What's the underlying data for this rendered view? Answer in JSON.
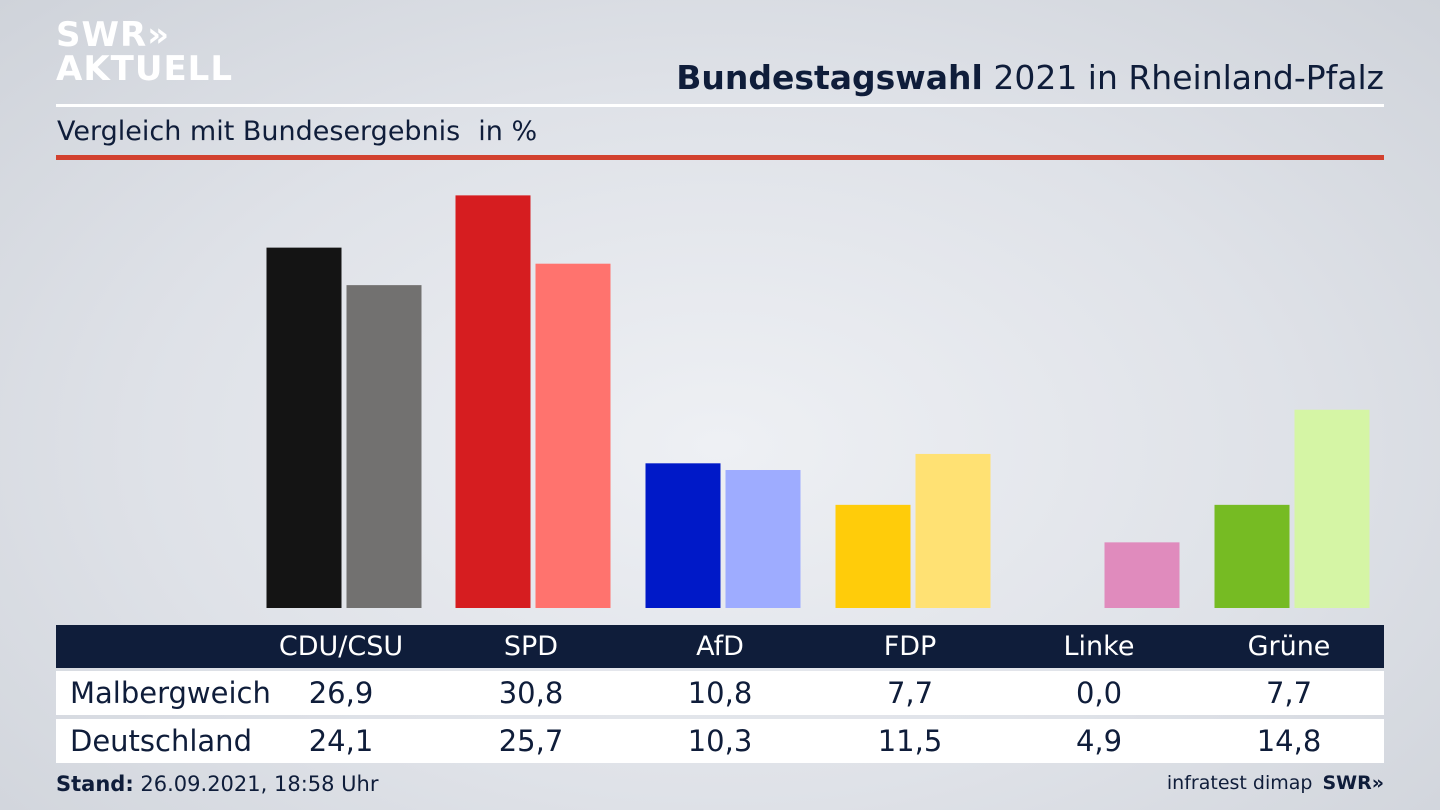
{
  "logo": {
    "line1": "SWR»",
    "line2": "AKTUELL"
  },
  "headline": {
    "bold": "Bundestagswahl",
    "rest": " 2021 in Rheinland-Pfalz"
  },
  "subtitle": {
    "text": "Vergleich mit Bundesergebnis",
    "unit": "in %"
  },
  "chart_data": {
    "type": "bar",
    "categories": [
      "CDU/CSU",
      "SPD",
      "AfD",
      "FDP",
      "Linke",
      "Grüne"
    ],
    "series": [
      {
        "name": "Malbergweich",
        "values": [
          26.9,
          30.8,
          10.8,
          7.7,
          0.0,
          7.7
        ],
        "colors": [
          "#141414",
          "#d61d20",
          "#0019c8",
          "#ffcc0a",
          "#be3075",
          "#76bb23"
        ]
      },
      {
        "name": "Deutschland",
        "values": [
          24.1,
          25.7,
          10.3,
          11.5,
          4.9,
          14.8
        ],
        "colors": [
          "#727170",
          "#ff736e",
          "#9eacff",
          "#ffe173",
          "#e08bbd",
          "#d5f5a5"
        ]
      }
    ],
    "ylim": [
      0,
      31.5
    ],
    "grid": false
  },
  "table": {
    "headers": [
      "CDU/CSU",
      "SPD",
      "AfD",
      "FDP",
      "Linke",
      "Grüne"
    ],
    "rows": [
      {
        "label": "Malbergweich",
        "values": [
          "26,9",
          "30,8",
          "10,8",
          "7,7",
          "0,0",
          "7,7"
        ]
      },
      {
        "label": "Deutschland",
        "values": [
          "24,1",
          "25,7",
          "10,3",
          "11,5",
          "4,9",
          "14,8"
        ]
      }
    ]
  },
  "footer": {
    "stand_label": "Stand:",
    "stand_value": " 26.09.2021, 18:58 Uhr",
    "source": "infratest dimap",
    "brand": "SWR»"
  }
}
